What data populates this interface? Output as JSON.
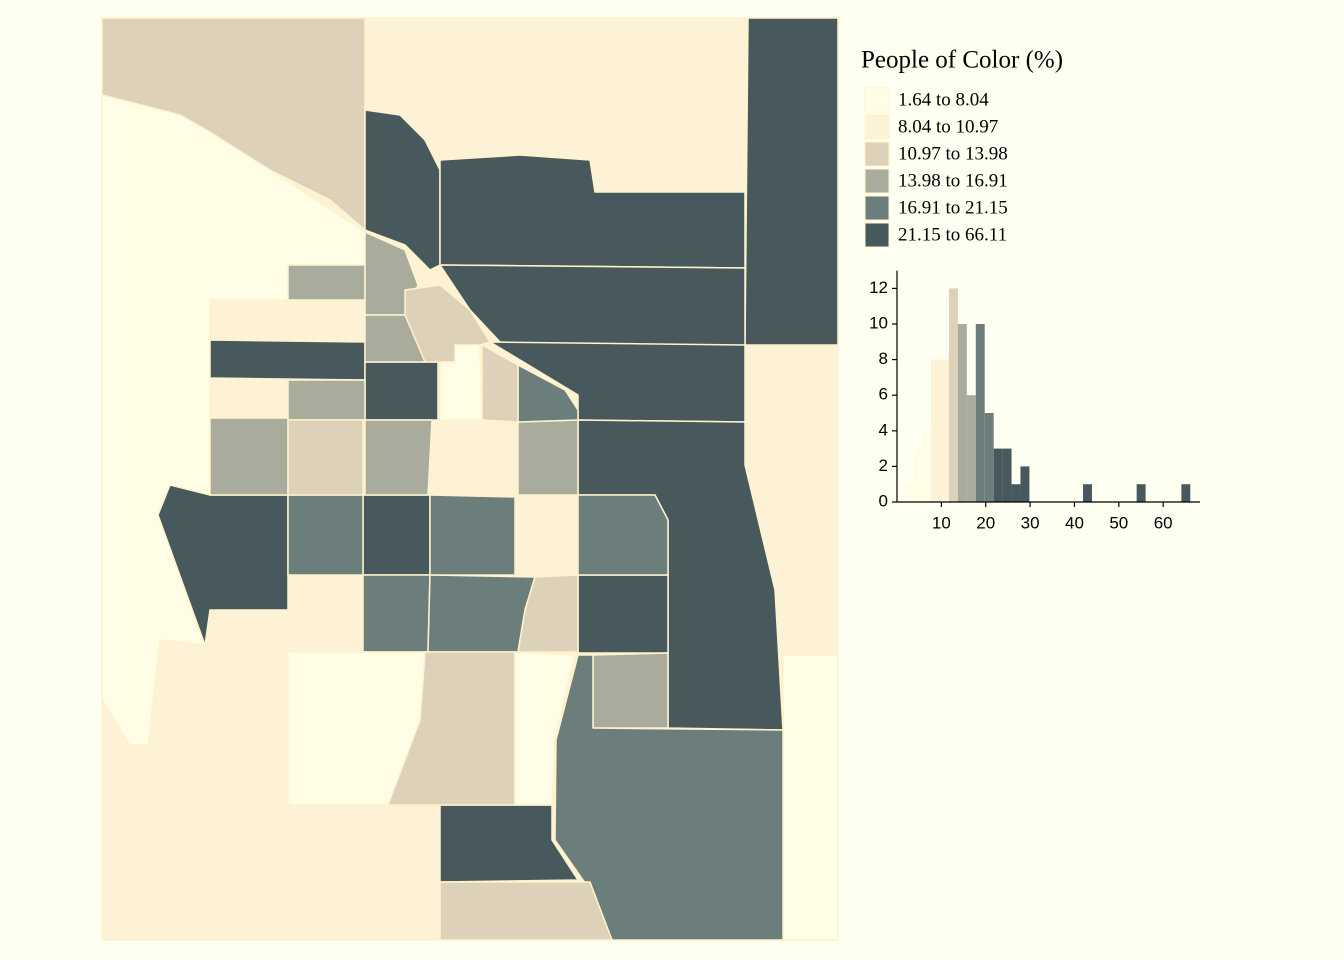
{
  "chart_data": {
    "type": "choropleth",
    "legend_title": "People of Color (%)",
    "legend": [
      {
        "label": "1.64 to 8.04",
        "color": "#fffde6"
      },
      {
        "label": "8.04 to 10.97",
        "color": "#fdf1d6"
      },
      {
        "label": "10.97 to 13.98",
        "color": "#ddd1b9"
      },
      {
        "label": "13.98 to 16.91",
        "color": "#a9ac9c"
      },
      {
        "label": "16.91 to 21.15",
        "color": "#6c7e7c"
      },
      {
        "label": "21.15 to 66.11",
        "color": "#48595d"
      }
    ],
    "breaks": [
      1.64,
      8.04,
      10.97,
      13.98,
      16.91,
      21.15,
      66.11
    ],
    "histogram": {
      "type": "histogram",
      "bins": [
        1.64,
        3.65,
        5.67,
        7.68,
        9.7,
        11.71,
        13.73,
        15.74,
        17.76,
        19.77,
        21.79,
        23.8,
        25.82,
        27.83,
        29.85,
        31.86,
        33.88,
        35.89,
        37.91,
        39.92,
        41.93,
        43.95,
        45.96,
        47.98,
        49.99,
        52.01,
        54.02,
        56.04,
        58.05,
        60.07,
        62.08,
        64.1,
        66.11
      ],
      "counts": [
        1,
        3,
        4,
        8,
        8,
        12,
        10,
        6,
        10,
        5,
        3,
        3,
        1,
        2,
        0,
        0,
        0,
        0,
        0,
        0,
        1,
        0,
        0,
        0,
        0,
        0,
        1,
        0,
        0,
        0,
        0,
        1
      ],
      "xlim": [
        0,
        68.3
      ],
      "xticks": [
        10,
        20,
        30,
        40,
        50,
        60
      ],
      "ylim": [
        0,
        13
      ],
      "yticks": [
        0,
        2,
        4,
        6,
        8,
        10,
        12
      ]
    }
  }
}
